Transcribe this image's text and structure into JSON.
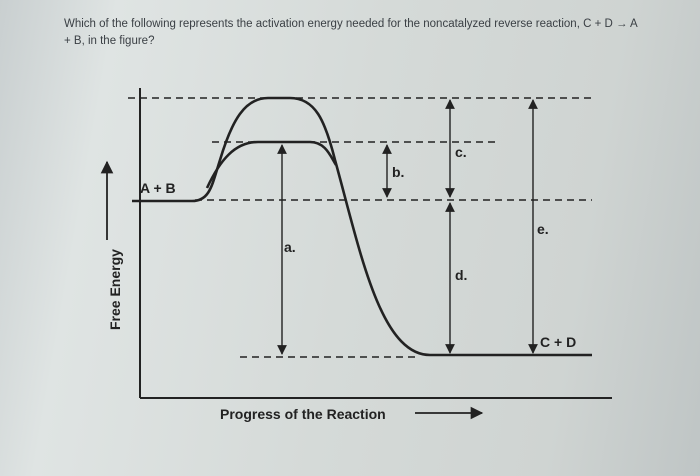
{
  "question": {
    "text": "Which of the following represents the activation energy needed for the noncatalyzed reverse reaction, C + D → A + B, in the figure?"
  },
  "figure": {
    "axis_labels": {
      "y": "Free Energy",
      "x": "Progress of the Reaction"
    },
    "states": {
      "reactants": "A + B",
      "products": "C + D"
    },
    "options": [
      "a.",
      "b.",
      "c.",
      "d.",
      "e."
    ]
  }
}
